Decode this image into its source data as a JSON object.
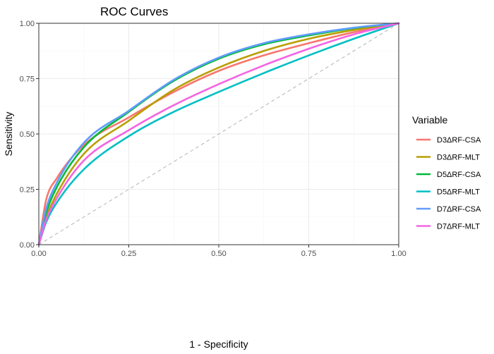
{
  "chart_data": {
    "type": "line",
    "title": "ROC Curves",
    "xlabel": "1 - Specificity",
    "ylabel": "Sensitivity",
    "xlim": [
      0,
      1
    ],
    "ylim": [
      0,
      1
    ],
    "x_ticks": [
      "0.00",
      "0.25",
      "0.50",
      "0.75",
      "1.00"
    ],
    "y_ticks": [
      "0.00",
      "0.25",
      "0.50",
      "0.75",
      "1.00"
    ],
    "x_tick_values": [
      0,
      0.25,
      0.5,
      0.75,
      1
    ],
    "y_tick_values": [
      0,
      0.25,
      0.5,
      0.75,
      1
    ],
    "grid": true,
    "legend": {
      "title": "Variable",
      "position": "right"
    },
    "reference_line": {
      "style": "dashed",
      "color": "#b3b3b3",
      "points": [
        [
          0,
          0
        ],
        [
          1,
          1
        ]
      ]
    },
    "x": [
      0,
      0.02,
      0.05,
      0.125,
      0.25,
      0.375,
      0.5,
      0.625,
      0.75,
      0.875,
      1
    ],
    "series": [
      {
        "name": "D3ΔRF-CSA",
        "color": "#F8766D",
        "values": [
          0,
          0.2,
          0.3,
          0.45,
          0.575,
          0.69,
          0.785,
          0.855,
          0.91,
          0.96,
          1
        ]
      },
      {
        "name": "D3ΔRF-MLT",
        "color": "#B79F00",
        "values": [
          0,
          0.12,
          0.23,
          0.41,
          0.56,
          0.7,
          0.8,
          0.875,
          0.93,
          0.97,
          1
        ]
      },
      {
        "name": "D5ΔRF-CSA",
        "color": "#00BA38",
        "values": [
          0,
          0.14,
          0.26,
          0.44,
          0.6,
          0.74,
          0.84,
          0.905,
          0.945,
          0.978,
          1
        ]
      },
      {
        "name": "D5ΔRF-MLT",
        "color": "#00BFC4",
        "values": [
          0,
          0.1,
          0.19,
          0.34,
          0.49,
          0.6,
          0.69,
          0.775,
          0.855,
          0.93,
          1
        ]
      },
      {
        "name": "D7ΔRF-CSA",
        "color": "#619CFF",
        "values": [
          0,
          0.16,
          0.28,
          0.46,
          0.605,
          0.745,
          0.845,
          0.91,
          0.95,
          0.98,
          1
        ]
      },
      {
        "name": "D7ΔRF-MLT",
        "color": "#F564E3",
        "values": [
          0,
          0.11,
          0.21,
          0.38,
          0.517,
          0.63,
          0.725,
          0.81,
          0.885,
          0.95,
          1
        ]
      }
    ]
  }
}
